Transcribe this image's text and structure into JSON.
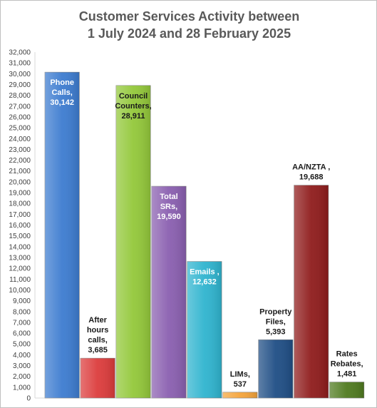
{
  "chart_data": {
    "type": "bar",
    "title_lines": [
      "Customer Services Activity between",
      "1 July 2024 and 28 February 2025"
    ],
    "xlabel": "",
    "ylabel": "",
    "ylim": [
      0,
      32000
    ],
    "ytick_step": 1000,
    "grid": false,
    "legend": "none",
    "bars": [
      {
        "value": 30142,
        "label_lines": [
          "Phone",
          "Calls,",
          "30,142"
        ],
        "color": "#3d7cd0",
        "label_color": "#ffffff",
        "label_position": "inside"
      },
      {
        "value": 3685,
        "label_lines": [
          "After",
          "hours",
          "calls,",
          "3,685"
        ],
        "color": "#dc3c3c",
        "label_color": "#1a1a1a",
        "label_position": "above"
      },
      {
        "value": 28911,
        "label_lines": [
          "Council",
          "Counters,",
          "28,911"
        ],
        "color": "#93c83a",
        "label_color": "#1a1a1a",
        "label_position": "inside"
      },
      {
        "value": 19590,
        "label_lines": [
          "Total",
          "SRs,",
          "19,590"
        ],
        "color": "#8a5fb0",
        "label_color": "#ffffff",
        "label_position": "inside"
      },
      {
        "value": 12632,
        "label_lines": [
          "Emails ,",
          "12,632"
        ],
        "color": "#2fb4cf",
        "label_color": "#ffffff",
        "label_position": "inside"
      },
      {
        "value": 537,
        "label_lines": [
          "LIMs,",
          "537"
        ],
        "color": "#f5a43a",
        "label_color": "#1a1a1a",
        "label_position": "above"
      },
      {
        "value": 5393,
        "label_lines": [
          "Property",
          "Files,",
          "5,393"
        ],
        "color": "#1f4e85",
        "label_color": "#1a1a1a",
        "label_position": "above"
      },
      {
        "value": 19688,
        "label_lines": [
          "AA/NZTA ,",
          "19,688"
        ],
        "color": "#8f1c1c",
        "label_color": "#1a1a1a",
        "label_position": "above"
      },
      {
        "value": 1481,
        "label_lines": [
          "Rates",
          "Rebates,",
          "1,481"
        ],
        "color": "#4f7a1f",
        "label_color": "#1a1a1a",
        "label_position": "above"
      }
    ]
  }
}
